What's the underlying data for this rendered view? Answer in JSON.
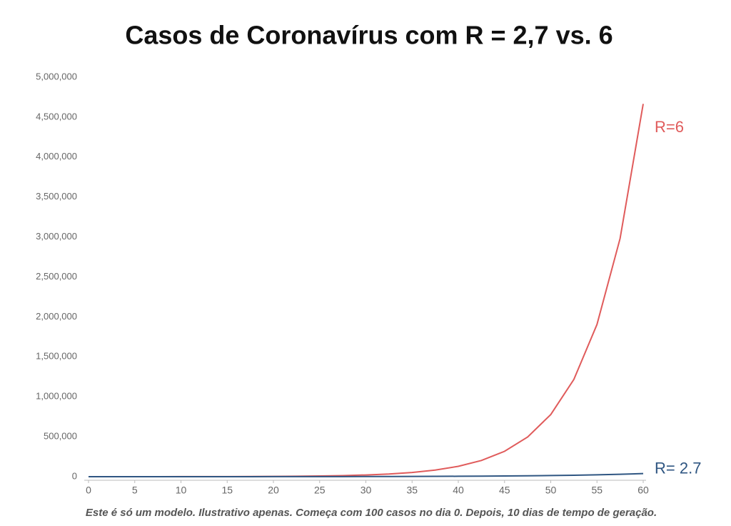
{
  "chart_data": {
    "type": "line",
    "title": "Casos de Coronavírus com R = 2,7 vs. 6",
    "footnote": "Este é só um modelo. Ilustrativo apenas. Começa com 100 casos no dia 0. Depois, 10 dias de tempo de geração.",
    "x": [
      0,
      2.5,
      5,
      7.5,
      10,
      12.5,
      15,
      17.5,
      20,
      22.5,
      25,
      27.5,
      30,
      32.5,
      35,
      37.5,
      40,
      42.5,
      45,
      47.5,
      50,
      52.5,
      55,
      57.5,
      60
    ],
    "series": [
      {
        "name": "R=6",
        "color": "#e05b5b",
        "values": [
          100,
          157,
          245,
          383,
          600,
          939,
          1470,
          2300,
          3600,
          5634,
          8818,
          13800,
          21600,
          33806,
          52909,
          82808,
          129600,
          202836,
          317453,
          496851,
          777600,
          1217013,
          1904718,
          2981140,
          4665600
        ]
      },
      {
        "name": "R= 2.7",
        "color": "#2f5682",
        "values": [
          100,
          128,
          164,
          211,
          270,
          346,
          444,
          569,
          729,
          935,
          1198,
          1536,
          1968,
          2523,
          3235,
          4147,
          5314,
          6813,
          8733,
          11195,
          14349,
          18396,
          23582,
          30230,
          38742
        ]
      }
    ],
    "xlim": [
      0,
      60
    ],
    "xticks": [
      0,
      5,
      10,
      15,
      20,
      25,
      30,
      35,
      40,
      45,
      50,
      55,
      60
    ],
    "ylim": [
      0,
      5000000
    ],
    "yticks": [
      0,
      {
        "value": 500000,
        "label": "500,000"
      },
      {
        "value": 1000000,
        "label": "1,000,000"
      },
      {
        "value": 1500000,
        "label": "1,500,000"
      },
      {
        "value": 2000000,
        "label": "2,000,000"
      },
      {
        "value": 2500000,
        "label": "2,500,000"
      },
      {
        "value": 3000000,
        "label": "3,000,000"
      },
      {
        "value": 3500000,
        "label": "3,500,000"
      },
      {
        "value": 4000000,
        "label": "4,000,000"
      },
      {
        "value": 4500000,
        "label": "4,500,000"
      },
      {
        "value": 5000000,
        "label": "5,000,000"
      }
    ],
    "grid": false
  }
}
